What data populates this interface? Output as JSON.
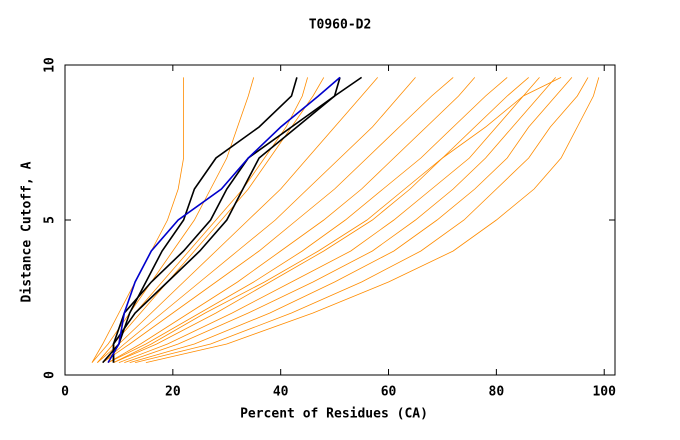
{
  "chart_data": {
    "type": "line",
    "title": "T0960-D2",
    "x_label": "Percent of Residues (CA)",
    "y_label": "Distance Cutoff, A",
    "xlim": [
      0,
      102
    ],
    "ylim": [
      0,
      10
    ],
    "xticks": [
      0,
      20,
      40,
      60,
      80,
      100
    ],
    "yticks": [
      0,
      5,
      10
    ],
    "y": [
      0.4,
      1,
      2,
      3,
      4,
      5,
      6,
      7,
      8,
      9,
      9.6
    ],
    "series": [
      {
        "color": "#ff8c00",
        "x": [
          5,
          7,
          10,
          13,
          16,
          19,
          21,
          22,
          22,
          22,
          22
        ]
      },
      {
        "color": "#ff8c00",
        "x": [
          5,
          8,
          12,
          16,
          20,
          24,
          27,
          30,
          32,
          34,
          35
        ]
      },
      {
        "color": "#ff8c00",
        "x": [
          6,
          9,
          14,
          19,
          24,
          29,
          34,
          38,
          42,
          46,
          48
        ]
      },
      {
        "color": "#ff8c00",
        "x": [
          6,
          10,
          16,
          22,
          28,
          34,
          40,
          45,
          50,
          55,
          58
        ]
      },
      {
        "color": "#ff8c00",
        "x": [
          7,
          11,
          18,
          25,
          32,
          39,
          45,
          51,
          57,
          62,
          65
        ]
      },
      {
        "color": "#ff8c00",
        "x": [
          7,
          12,
          20,
          28,
          36,
          43,
          50,
          56,
          62,
          68,
          72
        ]
      },
      {
        "color": "#ff8c00",
        "x": [
          8,
          14,
          23,
          32,
          40,
          48,
          55,
          61,
          67,
          73,
          76
        ]
      },
      {
        "color": "#ff8c00",
        "x": [
          8,
          15,
          25,
          35,
          44,
          52,
          59,
          66,
          72,
          78,
          82
        ]
      },
      {
        "color": "#ff8c00",
        "x": [
          9,
          17,
          28,
          38,
          48,
          57,
          64,
          70,
          76,
          82,
          86
        ]
      },
      {
        "color": "#ff8c00",
        "x": [
          10,
          19,
          31,
          42,
          53,
          61,
          68,
          75,
          80,
          85,
          88
        ]
      },
      {
        "color": "#ff8c00",
        "x": [
          11,
          21,
          34,
          46,
          57,
          65,
          72,
          78,
          83,
          88,
          91
        ]
      },
      {
        "color": "#ff8c00",
        "x": [
          12,
          24,
          38,
          50,
          61,
          69,
          76,
          82,
          86,
          91,
          94
        ]
      },
      {
        "color": "#ff8c00",
        "x": [
          13,
          27,
          42,
          55,
          66,
          74,
          80,
          86,
          90,
          95,
          97
        ]
      },
      {
        "color": "#ff8c00",
        "x": [
          15,
          30,
          46,
          60,
          72,
          80,
          87,
          92,
          95,
          98,
          99
        ]
      },
      {
        "color": "#ff8c00",
        "x": [
          6,
          9,
          13,
          18,
          23,
          28,
          33,
          37,
          41,
          44,
          45
        ]
      },
      {
        "color": "#ff8c00",
        "x": [
          9,
          16,
          26,
          37,
          47,
          56,
          63,
          70,
          78,
          85,
          92
        ]
      },
      {
        "color": "#000000",
        "x": [
          7,
          10,
          12,
          15,
          18,
          22,
          24,
          28,
          36,
          42,
          43
        ]
      },
      {
        "color": "#000000",
        "x": [
          9,
          9,
          11,
          16,
          22,
          27,
          30,
          34,
          42,
          50,
          51
        ]
      },
      {
        "color": "#000000",
        "x": [
          9,
          9,
          13,
          19,
          25,
          30,
          33,
          36,
          43,
          50,
          55
        ]
      },
      {
        "color": "#0000cc",
        "x": [
          8,
          10,
          11,
          13,
          16,
          21,
          29,
          34,
          40,
          47,
          51
        ]
      }
    ]
  }
}
